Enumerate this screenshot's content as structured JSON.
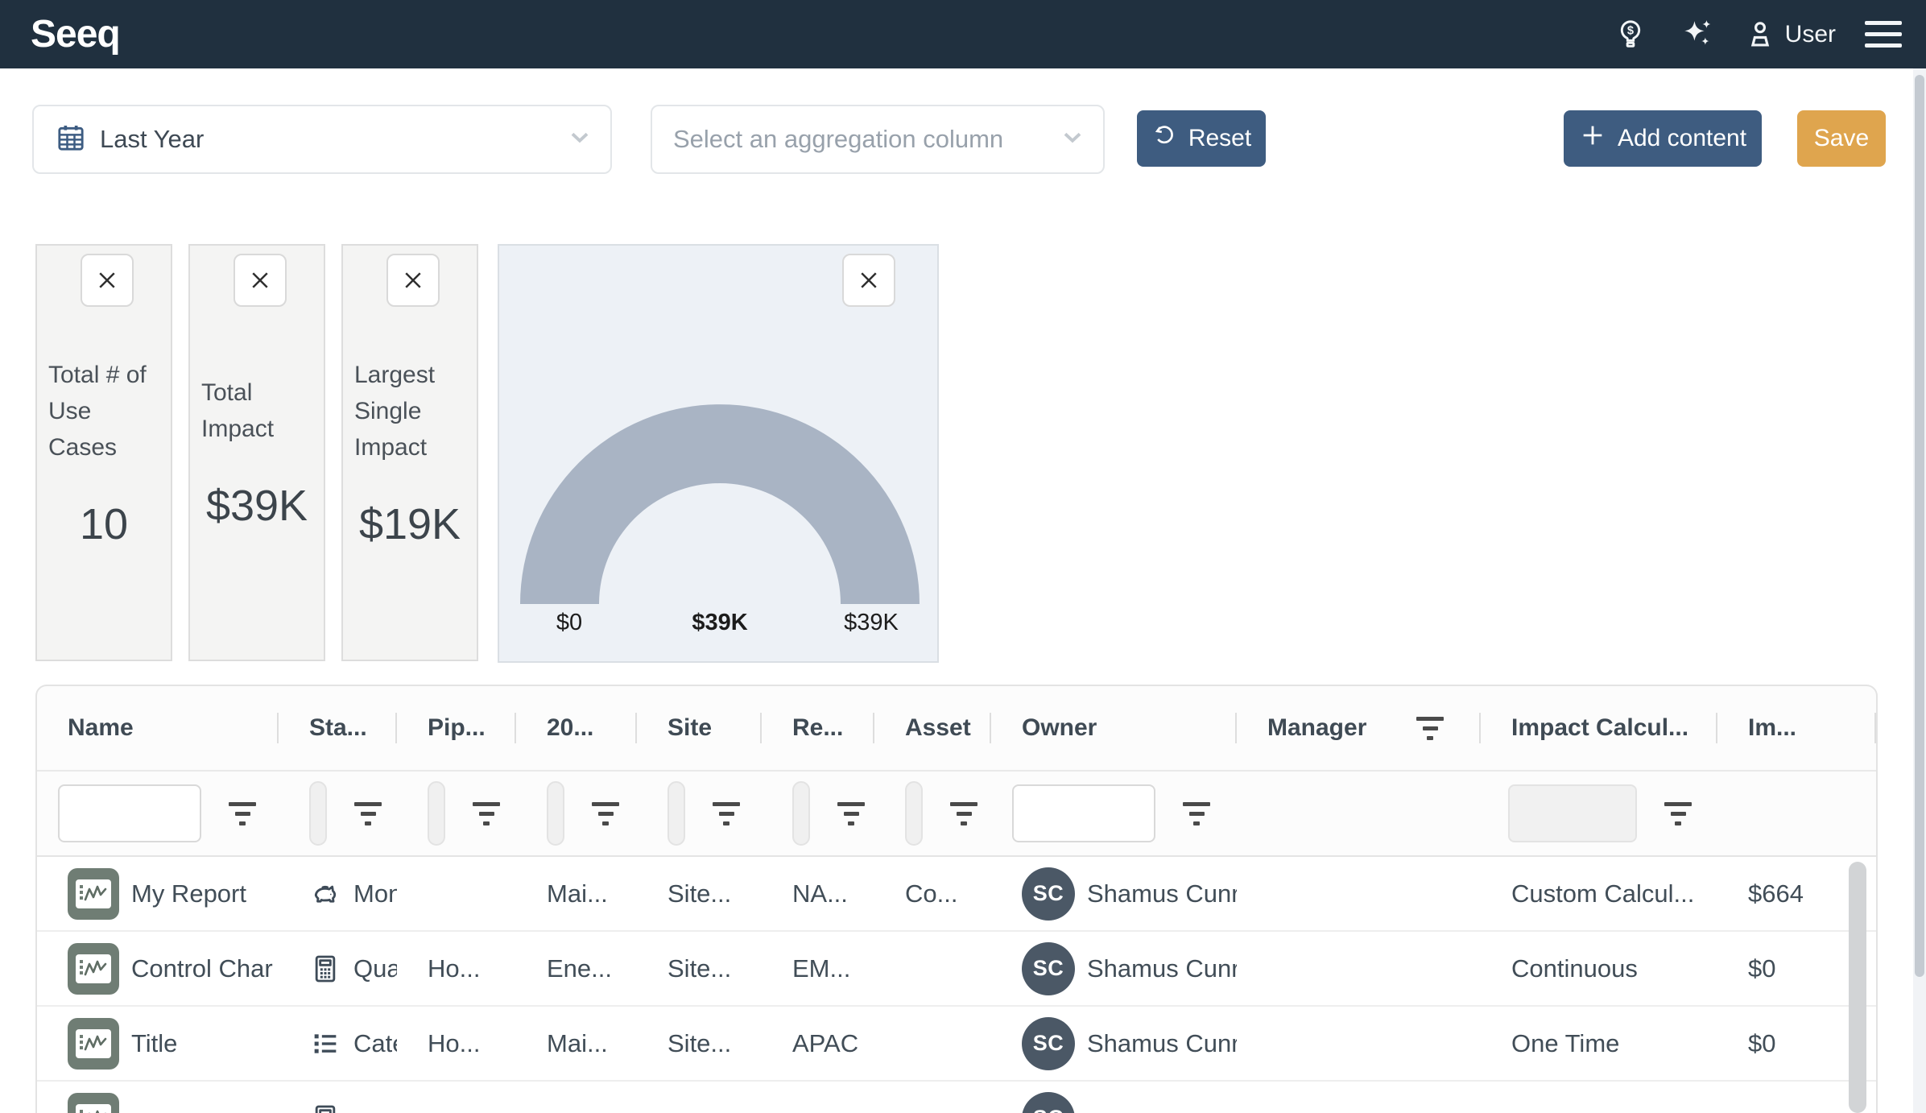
{
  "header": {
    "logo": "Seeq",
    "user_label": "User",
    "icons": [
      "lightbulb-dollar-icon",
      "sparkles-icon",
      "user-icon",
      "hamburger-icon"
    ]
  },
  "toolbar": {
    "date_range": {
      "value": "Last Year",
      "icon": "calendar-icon"
    },
    "aggregation": {
      "placeholder": "Select an aggregation column"
    },
    "reset_label": "Reset",
    "add_content_label": "Add content",
    "save_label": "Save"
  },
  "cards": [
    {
      "label": "Total # of Use Cases",
      "value": "10"
    },
    {
      "label": "Total Impact",
      "value": "$39K"
    },
    {
      "label": "Largest Single Impact",
      "value": "$19K"
    }
  ],
  "chart_data": {
    "type": "gauge",
    "min": 0,
    "value": 39000,
    "max": 39000,
    "min_label": "$0",
    "value_label": "$39K",
    "max_label": "$39K",
    "arc_color": "#a9b4c4",
    "background": "#edf1f6"
  },
  "table": {
    "columns": [
      {
        "label": "Name",
        "filter": "input"
      },
      {
        "label": "Sta...",
        "filter": "pill"
      },
      {
        "label": "Pip...",
        "filter": "pill"
      },
      {
        "label": "20...",
        "filter": "pill"
      },
      {
        "label": "Site",
        "filter": "pill"
      },
      {
        "label": "Re...",
        "filter": "pill"
      },
      {
        "label": "Asset",
        "filter": "pill"
      },
      {
        "label": "Owner",
        "filter": "input"
      },
      {
        "label": "Manager",
        "filter": "none",
        "header_filter_icon": true
      },
      {
        "label": "Impact Calcul...",
        "filter": "input-disabled"
      },
      {
        "label": "Im...",
        "filter": "none"
      }
    ],
    "rows": [
      {
        "name": "My Report",
        "name_icon": "report-icon",
        "status_icon": "piggy-bank-icon",
        "status": "Mon",
        "pipeline": "",
        "year": "Mai...",
        "site": "Site...",
        "region": "NA...",
        "asset": "Co...",
        "owner_initials": "SC",
        "owner": "Shamus Cunr",
        "manager": "",
        "impact_calc": "Custom Calcul...",
        "impact": "$664"
      },
      {
        "name": "Control Char",
        "name_icon": "report-icon",
        "status_icon": "calculator-icon",
        "status": "Quan",
        "pipeline": "Ho...",
        "year": "Ene...",
        "site": "Site...",
        "region": "EM...",
        "asset": "",
        "owner_initials": "SC",
        "owner": "Shamus Cunr",
        "manager": "",
        "impact_calc": "Continuous",
        "impact": "$0"
      },
      {
        "name": "Title",
        "name_icon": "report-icon",
        "status_icon": "list-icon",
        "status": "Categ",
        "pipeline": "Ho...",
        "year": "Mai...",
        "site": "Site...",
        "region": "APAC",
        "asset": "",
        "owner_initials": "SC",
        "owner": "Shamus Cunr",
        "manager": "",
        "impact_calc": "One Time",
        "impact": "$0"
      },
      {
        "name": "",
        "name_icon": "report-icon",
        "status_icon": "calculator-icon",
        "status": "",
        "pipeline": "",
        "year": "",
        "site": "",
        "region": "",
        "asset": "",
        "owner_initials": "SC",
        "owner": "",
        "manager": "",
        "impact_calc": "",
        "impact": "",
        "partial": true
      }
    ]
  },
  "colors": {
    "header_bg": "#20303f",
    "primary_button": "#3e5c80",
    "save_button": "#dfa54e",
    "calendar_icon": "#3d5c82",
    "gauge_arc": "#a9b4c4",
    "name_icon_bg": "#6f7d74",
    "avatar_bg": "#4b5866"
  }
}
